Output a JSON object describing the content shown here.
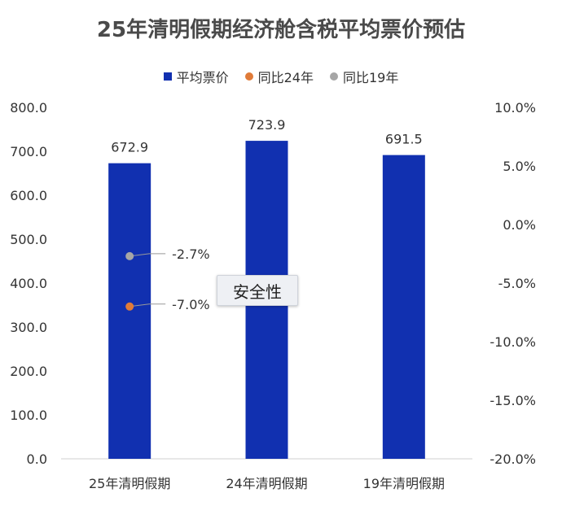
{
  "chart_data": {
    "type": "bar",
    "title": "25年清明假期经济舱含税平均票价预估",
    "categories": [
      "25年清明假期",
      "24年清明假期",
      "19年清明假期"
    ],
    "series": [
      {
        "name": "平均票价",
        "axis": "left",
        "kind": "bar",
        "color": "#1130b0",
        "values": [
          672.9,
          723.9,
          691.5
        ]
      },
      {
        "name": "同比24年",
        "axis": "right",
        "kind": "point",
        "color": "#e07b39",
        "values": [
          -7.0,
          null,
          null
        ]
      },
      {
        "name": "同比19年",
        "axis": "right",
        "kind": "point",
        "color": "#a6a6a6",
        "values": [
          -2.7,
          null,
          null
        ]
      }
    ],
    "data_labels": {
      "bars": [
        "672.9",
        "723.9",
        "691.5"
      ],
      "yoy24": "-7.0%",
      "yoy19": "-2.7%"
    },
    "ylim_left": [
      0,
      800
    ],
    "yticks_left": [
      "0.0",
      "100.0",
      "200.0",
      "300.0",
      "400.0",
      "500.0",
      "600.0",
      "700.0",
      "800.0"
    ],
    "ylim_right": [
      -20,
      10
    ],
    "yticks_right": [
      "-20.0%",
      "-15.0%",
      "-10.0%",
      "-5.0%",
      "0.0%",
      "5.0%",
      "10.0%"
    ],
    "grid": false,
    "legend_position": "top-center"
  },
  "tooltip": {
    "text": "安全性"
  }
}
